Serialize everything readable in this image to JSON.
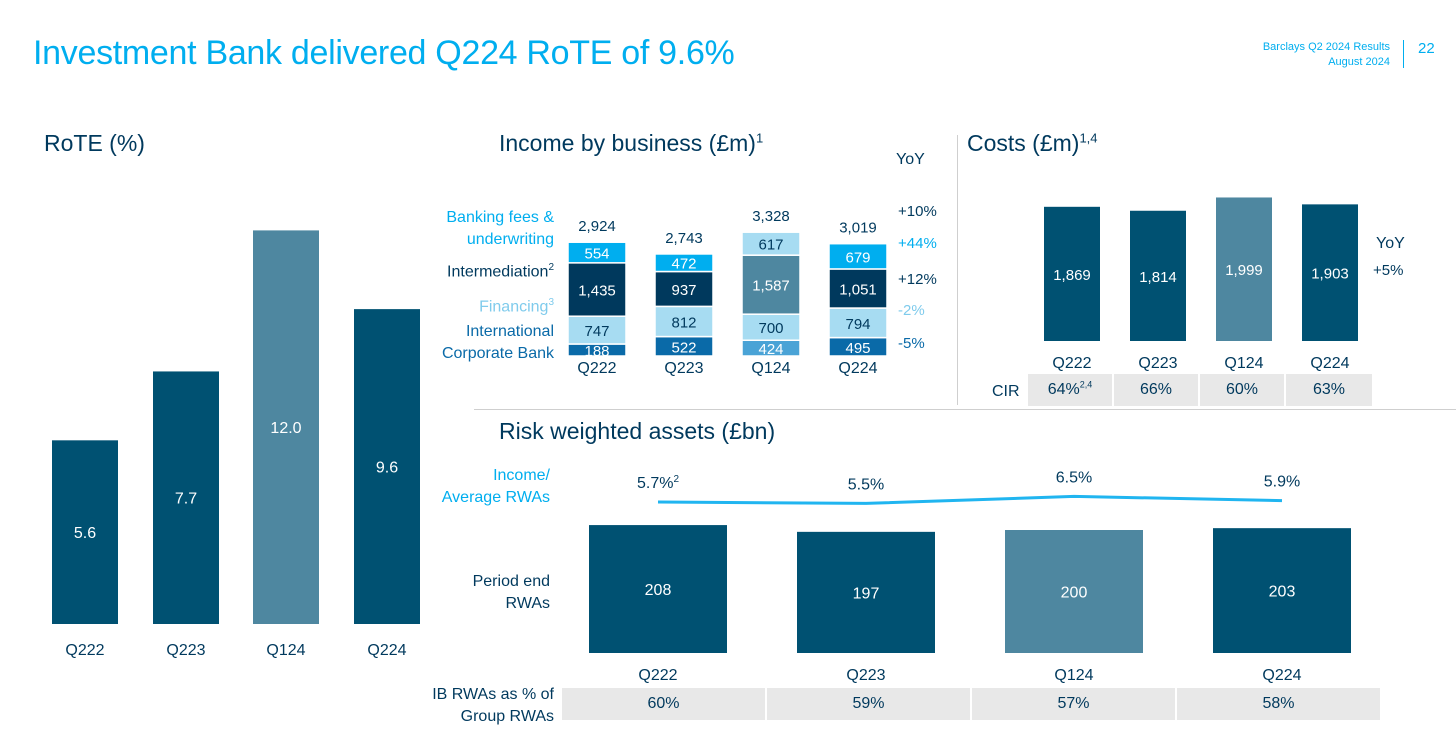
{
  "header": {
    "title": "Investment Bank delivered Q224 RoTE of 9.6%",
    "report": "Barclays Q2 2024 Results",
    "date": "August 2024",
    "page": "22"
  },
  "colors": {
    "dark": "#005172",
    "mid": "#4e87a0",
    "accent": "#00aeef",
    "light": "#a7dcf2",
    "line": "#20b5f0"
  },
  "rote": {
    "title": "RoTE (%)"
  },
  "income": {
    "title": "Income by business (£m)",
    "title_sup": "1",
    "yoy_header": "YoY",
    "labels": {
      "banking_a": "Banking fees &",
      "banking_b": "underwriting",
      "intermediation": "Intermediation",
      "intermediation_sup": "2",
      "financing": "Financing",
      "financing_sup": "3",
      "icb_a": "International",
      "icb_b": "Corporate Bank"
    },
    "yoy": {
      "total": "+10%",
      "banking": "+44%",
      "intermediation": "+12%",
      "financing": "-2%",
      "icb": "-5%"
    }
  },
  "costs": {
    "title": "Costs (£m)",
    "title_sup": "1,4",
    "yoy_header": "YoY",
    "yoy_value": "+5%",
    "cir_label": "CIR",
    "cir": [
      "64%",
      "66%",
      "60%",
      "63%"
    ],
    "cir_first_sup": "2,4"
  },
  "rwa": {
    "title": "Risk weighted assets (£bn)",
    "line_label_a": "Income/",
    "line_label_b": "Average RWAs",
    "bar_label_a": "Period end",
    "bar_label_b": "RWAs",
    "first_line_sup": "2",
    "pct_label_a": "IB RWAs as % of",
    "pct_label_b": "Group RWAs",
    "pct": [
      "60%",
      "59%",
      "57%",
      "58%"
    ]
  },
  "chart_data": [
    {
      "type": "bar",
      "title": "RoTE (%)",
      "categories": [
        "Q222",
        "Q223",
        "Q124",
        "Q224"
      ],
      "values": [
        5.6,
        7.7,
        12.0,
        9.6
      ],
      "labels": [
        "5.6",
        "7.7",
        "12.0",
        "9.6"
      ],
      "highlight_index": 2
    },
    {
      "type": "bar",
      "stacked": true,
      "title": "Income by business (£m)",
      "categories": [
        "Q222",
        "Q223",
        "Q124",
        "Q224"
      ],
      "totals": [
        2924,
        2743,
        3328,
        3019
      ],
      "total_labels": [
        "2,924",
        "2,743",
        "3,328",
        "3,019"
      ],
      "series": [
        {
          "name": "International Corporate Bank",
          "values": [
            188,
            522,
            424,
            495
          ],
          "labels": [
            "188",
            "522",
            "424",
            "495"
          ]
        },
        {
          "name": "Financing",
          "values": [
            747,
            812,
            700,
            794
          ],
          "labels": [
            "747",
            "812",
            "700",
            "794"
          ]
        },
        {
          "name": "Intermediation",
          "values": [
            1435,
            937,
            1587,
            1051
          ],
          "labels": [
            "1,435",
            "937",
            "1,587",
            "1,051"
          ]
        },
        {
          "name": "Banking fees & underwriting",
          "values": [
            554,
            472,
            617,
            679
          ],
          "labels": [
            "554",
            "472",
            "617",
            "679"
          ]
        }
      ],
      "highlight_index": 2
    },
    {
      "type": "bar",
      "title": "Costs (£m)",
      "categories": [
        "Q222",
        "Q223",
        "Q124",
        "Q224"
      ],
      "values": [
        1869,
        1814,
        1999,
        1903
      ],
      "labels": [
        "1,869",
        "1,814",
        "1,999",
        "1,903"
      ],
      "highlight_index": 2
    },
    {
      "type": "bar",
      "title": "Risk weighted assets (£bn)",
      "categories": [
        "Q222",
        "Q223",
        "Q124",
        "Q224"
      ],
      "values": [
        208,
        197,
        200,
        203
      ],
      "labels": [
        "208",
        "197",
        "200",
        "203"
      ],
      "highlight_index": 2
    },
    {
      "type": "line",
      "name": "Income/Average RWAs",
      "categories": [
        "Q222",
        "Q223",
        "Q124",
        "Q224"
      ],
      "values": [
        5.7,
        5.5,
        6.5,
        5.9
      ],
      "labels": [
        "5.7%",
        "5.5%",
        "6.5%",
        "5.9%"
      ]
    }
  ]
}
